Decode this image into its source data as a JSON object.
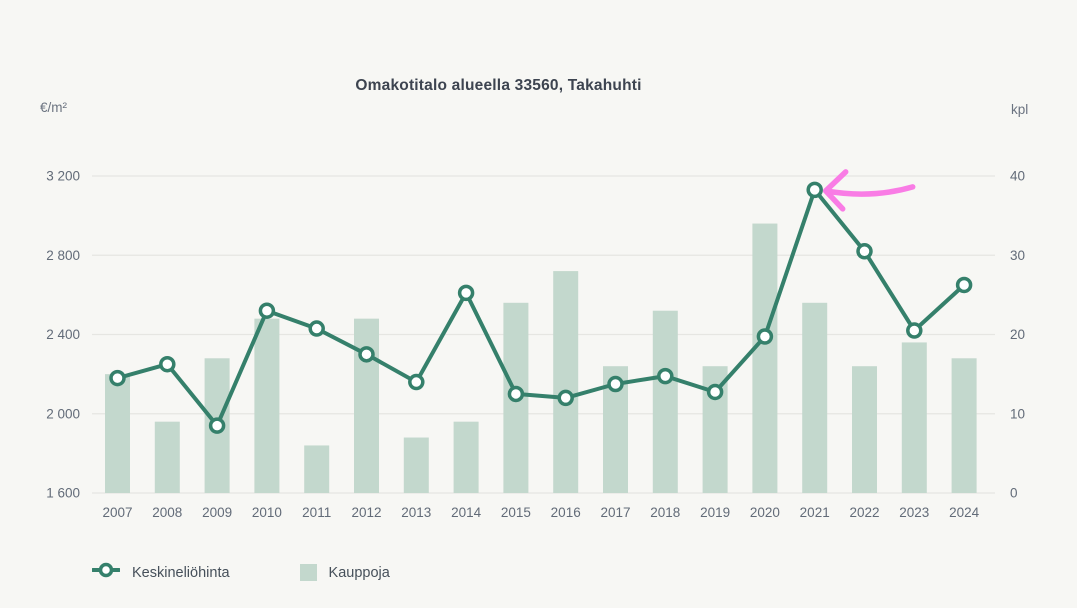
{
  "title": "Omakotitalo alueella 33560, Takahuhti",
  "left_axis": {
    "unit": "€/m²",
    "ticks": [
      "3 200",
      "2 800",
      "2 400",
      "2 000",
      "1 600"
    ]
  },
  "right_axis": {
    "unit": "kpl",
    "ticks": [
      "40",
      "30",
      "20",
      "10",
      "0"
    ]
  },
  "legend": {
    "items": [
      {
        "label": "Keskineliöhinta",
        "marker": "line-circle-marker"
      },
      {
        "label": "Kauppoja",
        "marker": "square-swatch"
      }
    ]
  },
  "colors": {
    "background": "#f7f7f4",
    "line": "#35806b",
    "marker_fill": "#ffffff",
    "bar": "#c3d8cd",
    "grid": "#e6e6e2",
    "title_text": "#3d4450",
    "axis_text": "#626b78",
    "annotation": "#f97ce5"
  },
  "chart_data": {
    "type": "combo",
    "categories": [
      "2007",
      "2008",
      "2009",
      "2010",
      "2011",
      "2012",
      "2013",
      "2014",
      "2015",
      "2016",
      "2017",
      "2018",
      "2019",
      "2020",
      "2021",
      "2022",
      "2023",
      "2024"
    ],
    "series": [
      {
        "name": "Keskineliöhinta",
        "type": "line",
        "axis": "left",
        "unit": "€/m²",
        "values": [
          2180,
          2250,
          1940,
          2520,
          2430,
          2300,
          2160,
          2610,
          2100,
          2080,
          2150,
          2190,
          2110,
          2390,
          3130,
          2820,
          2420,
          2650
        ]
      },
      {
        "name": "Kauppoja",
        "type": "bar",
        "axis": "right",
        "unit": "kpl",
        "values": [
          15,
          9,
          17,
          22,
          6,
          22,
          7,
          9,
          24,
          28,
          16,
          23,
          16,
          34,
          24,
          16,
          19,
          17
        ]
      }
    ],
    "title": "Omakotitalo alueella 33560, Takahuhti",
    "left_ylim": [
      1600,
      3200
    ],
    "right_ylim": [
      0,
      40
    ],
    "grid": true,
    "legend_position": "bottom",
    "annotation": {
      "type": "hand-drawn-arrow",
      "color": "#f97ce5",
      "target_series": "Keskineliöhinta",
      "target_category": "2021",
      "description": "Pink freehand arrow pointing left at the 2021 price peak"
    }
  }
}
